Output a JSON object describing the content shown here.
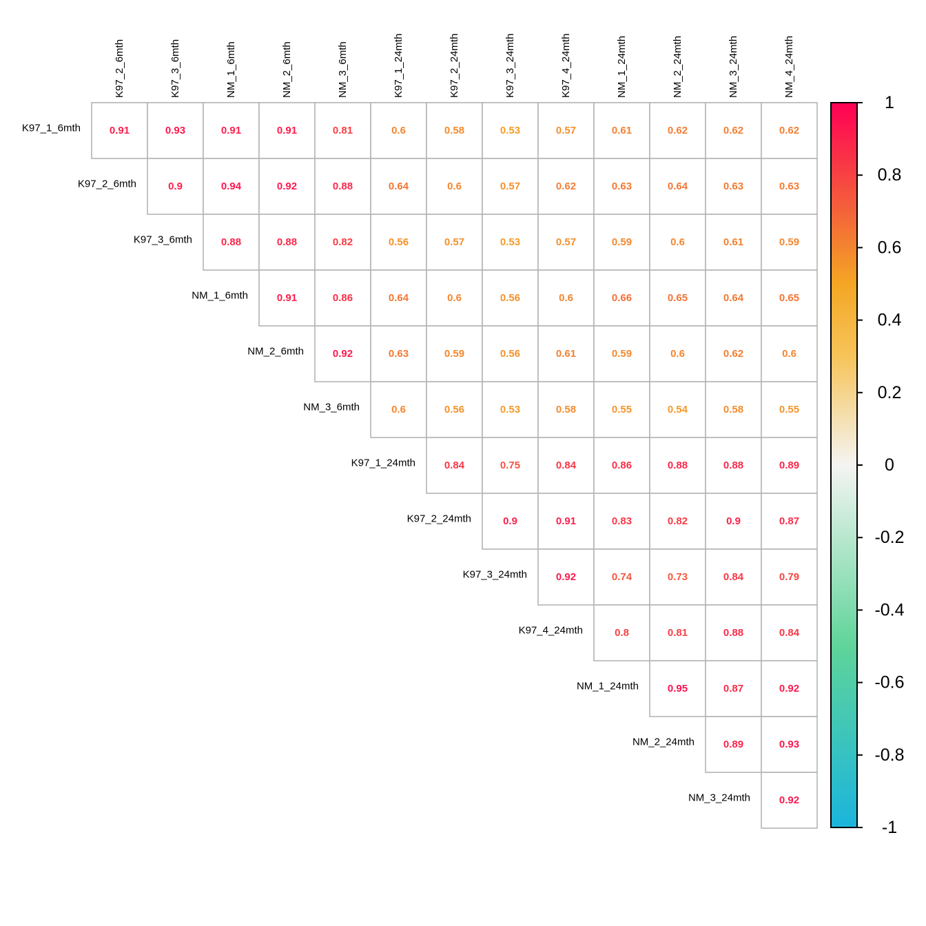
{
  "chart_data": {
    "type": "heatmap",
    "layout": "upper-triangular correlation matrix",
    "row_labels": [
      "K97_1_6mth",
      "K97_2_6mth",
      "K97_3_6mth",
      "NM_1_6mth",
      "NM_2_6mth",
      "NM_3_6mth",
      "K97_1_24mth",
      "K97_2_24mth",
      "K97_3_24mth",
      "K97_4_24mth",
      "NM_1_24mth",
      "NM_2_24mth",
      "NM_3_24mth"
    ],
    "col_labels": [
      "K97_2_6mth",
      "K97_3_6mth",
      "NM_1_6mth",
      "NM_2_6mth",
      "NM_3_6mth",
      "K97_1_24mth",
      "K97_2_24mth",
      "K97_3_24mth",
      "K97_4_24mth",
      "NM_1_24mth",
      "NM_2_24mth",
      "NM_3_24mth",
      "NM_4_24mth"
    ],
    "values": [
      [
        0.91,
        0.93,
        0.91,
        0.91,
        0.81,
        0.6,
        0.58,
        0.53,
        0.57,
        0.61,
        0.62,
        0.62,
        0.62
      ],
      [
        0.9,
        0.94,
        0.92,
        0.88,
        0.64,
        0.6,
        0.57,
        0.62,
        0.63,
        0.64,
        0.63,
        0.63
      ],
      [
        0.88,
        0.88,
        0.82,
        0.56,
        0.57,
        0.53,
        0.57,
        0.59,
        0.6,
        0.61,
        0.59
      ],
      [
        0.91,
        0.86,
        0.64,
        0.6,
        0.56,
        0.6,
        0.66,
        0.65,
        0.64,
        0.65
      ],
      [
        0.92,
        0.63,
        0.59,
        0.56,
        0.61,
        0.59,
        0.6,
        0.62,
        0.6
      ],
      [
        0.6,
        0.56,
        0.53,
        0.58,
        0.55,
        0.54,
        0.58,
        0.55
      ],
      [
        0.84,
        0.75,
        0.84,
        0.86,
        0.88,
        0.88,
        0.89
      ],
      [
        0.9,
        0.91,
        0.83,
        0.82,
        0.9,
        0.87
      ],
      [
        0.92,
        0.74,
        0.73,
        0.84,
        0.79
      ],
      [
        0.8,
        0.81,
        0.88,
        0.84
      ],
      [
        0.95,
        0.87,
        0.92
      ],
      [
        0.89,
        0.93
      ],
      [
        0.92
      ]
    ],
    "colorbar": {
      "range": [
        -1,
        1
      ],
      "ticks": [
        "1",
        "0.8",
        "0.6",
        "0.4",
        "0.2",
        "0",
        "-0.2",
        "-0.4",
        "-0.6",
        "-0.8",
        "-1"
      ],
      "colors": {
        "-1": "#1bb5dc",
        "-0.5": "#5fd49a",
        "0": "#f4f4f2",
        "0.3": "#f6c45a",
        "0.5": "#f4a624",
        "0.7": "#f4633a",
        "1": "#ff0054"
      }
    }
  }
}
